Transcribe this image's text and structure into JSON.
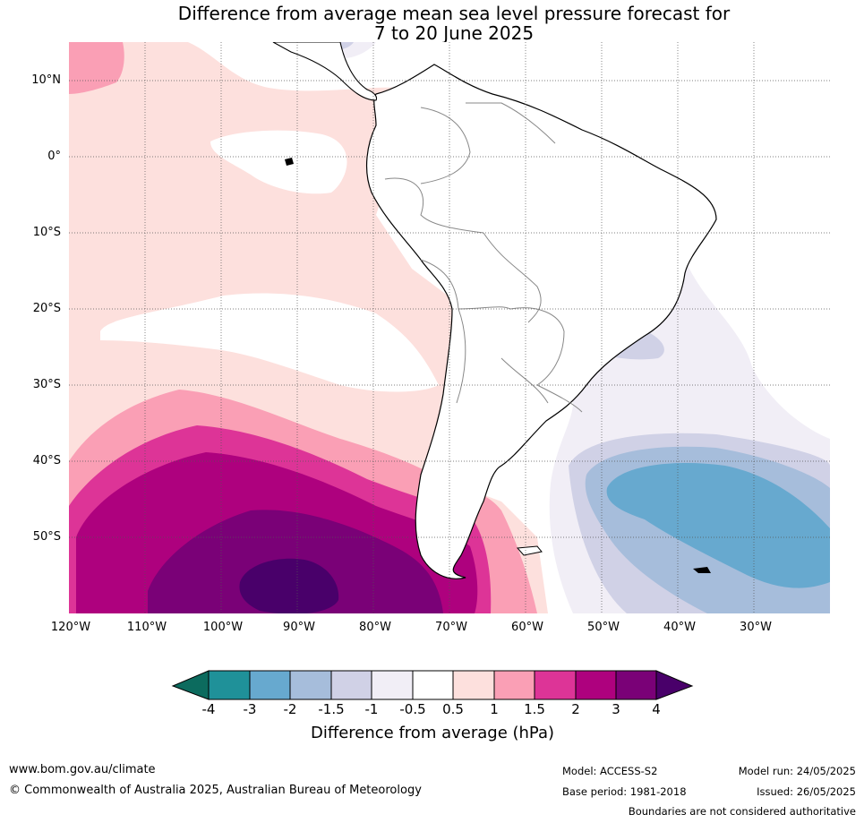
{
  "title": {
    "line1": "Difference from average mean sea level pressure forecast for",
    "line2": "7 to 20 June 2025"
  },
  "map": {
    "region": "South America",
    "lat_labels": [
      "10°N",
      "0°",
      "10°S",
      "20°S",
      "30°S",
      "40°S",
      "50°S"
    ],
    "lon_labels": [
      "120°W",
      "110°W",
      "100°W",
      "90°W",
      "80°W",
      "70°W",
      "60°W",
      "50°W",
      "40°W",
      "30°W"
    ],
    "lat_extent": [
      -60,
      15
    ],
    "lon_extent": [
      -120,
      -20
    ]
  },
  "colorbar": {
    "title": "Difference from average (hPa)",
    "tick_labels": [
      "-4",
      "-3",
      "-2",
      "-1.5",
      "-1",
      "-0.5",
      "0.5",
      "1",
      "1.5",
      "2",
      "3",
      "4"
    ],
    "colors": [
      "#0c6b5e",
      "#1f9199",
      "#67a9cf",
      "#a6bddb",
      "#d0d1e6",
      "#f1eef6",
      "#ffffff",
      "#fde0dd",
      "#fa9fb5",
      "#dd3497",
      "#ae017e",
      "#7a0177",
      "#49006a"
    ]
  },
  "footer": {
    "website": "www.bom.gov.au/climate",
    "copyright": "© Commonwealth of Australia 2025, Australian Bureau of Meteorology",
    "model": "Model: ACCESS-S2",
    "base_period": "Base period: 1981-2018",
    "model_run": "Model run: 24/05/2025",
    "issued": "Issued: 26/05/2025",
    "disclaimer": "Boundaries are not considered authoritative"
  }
}
